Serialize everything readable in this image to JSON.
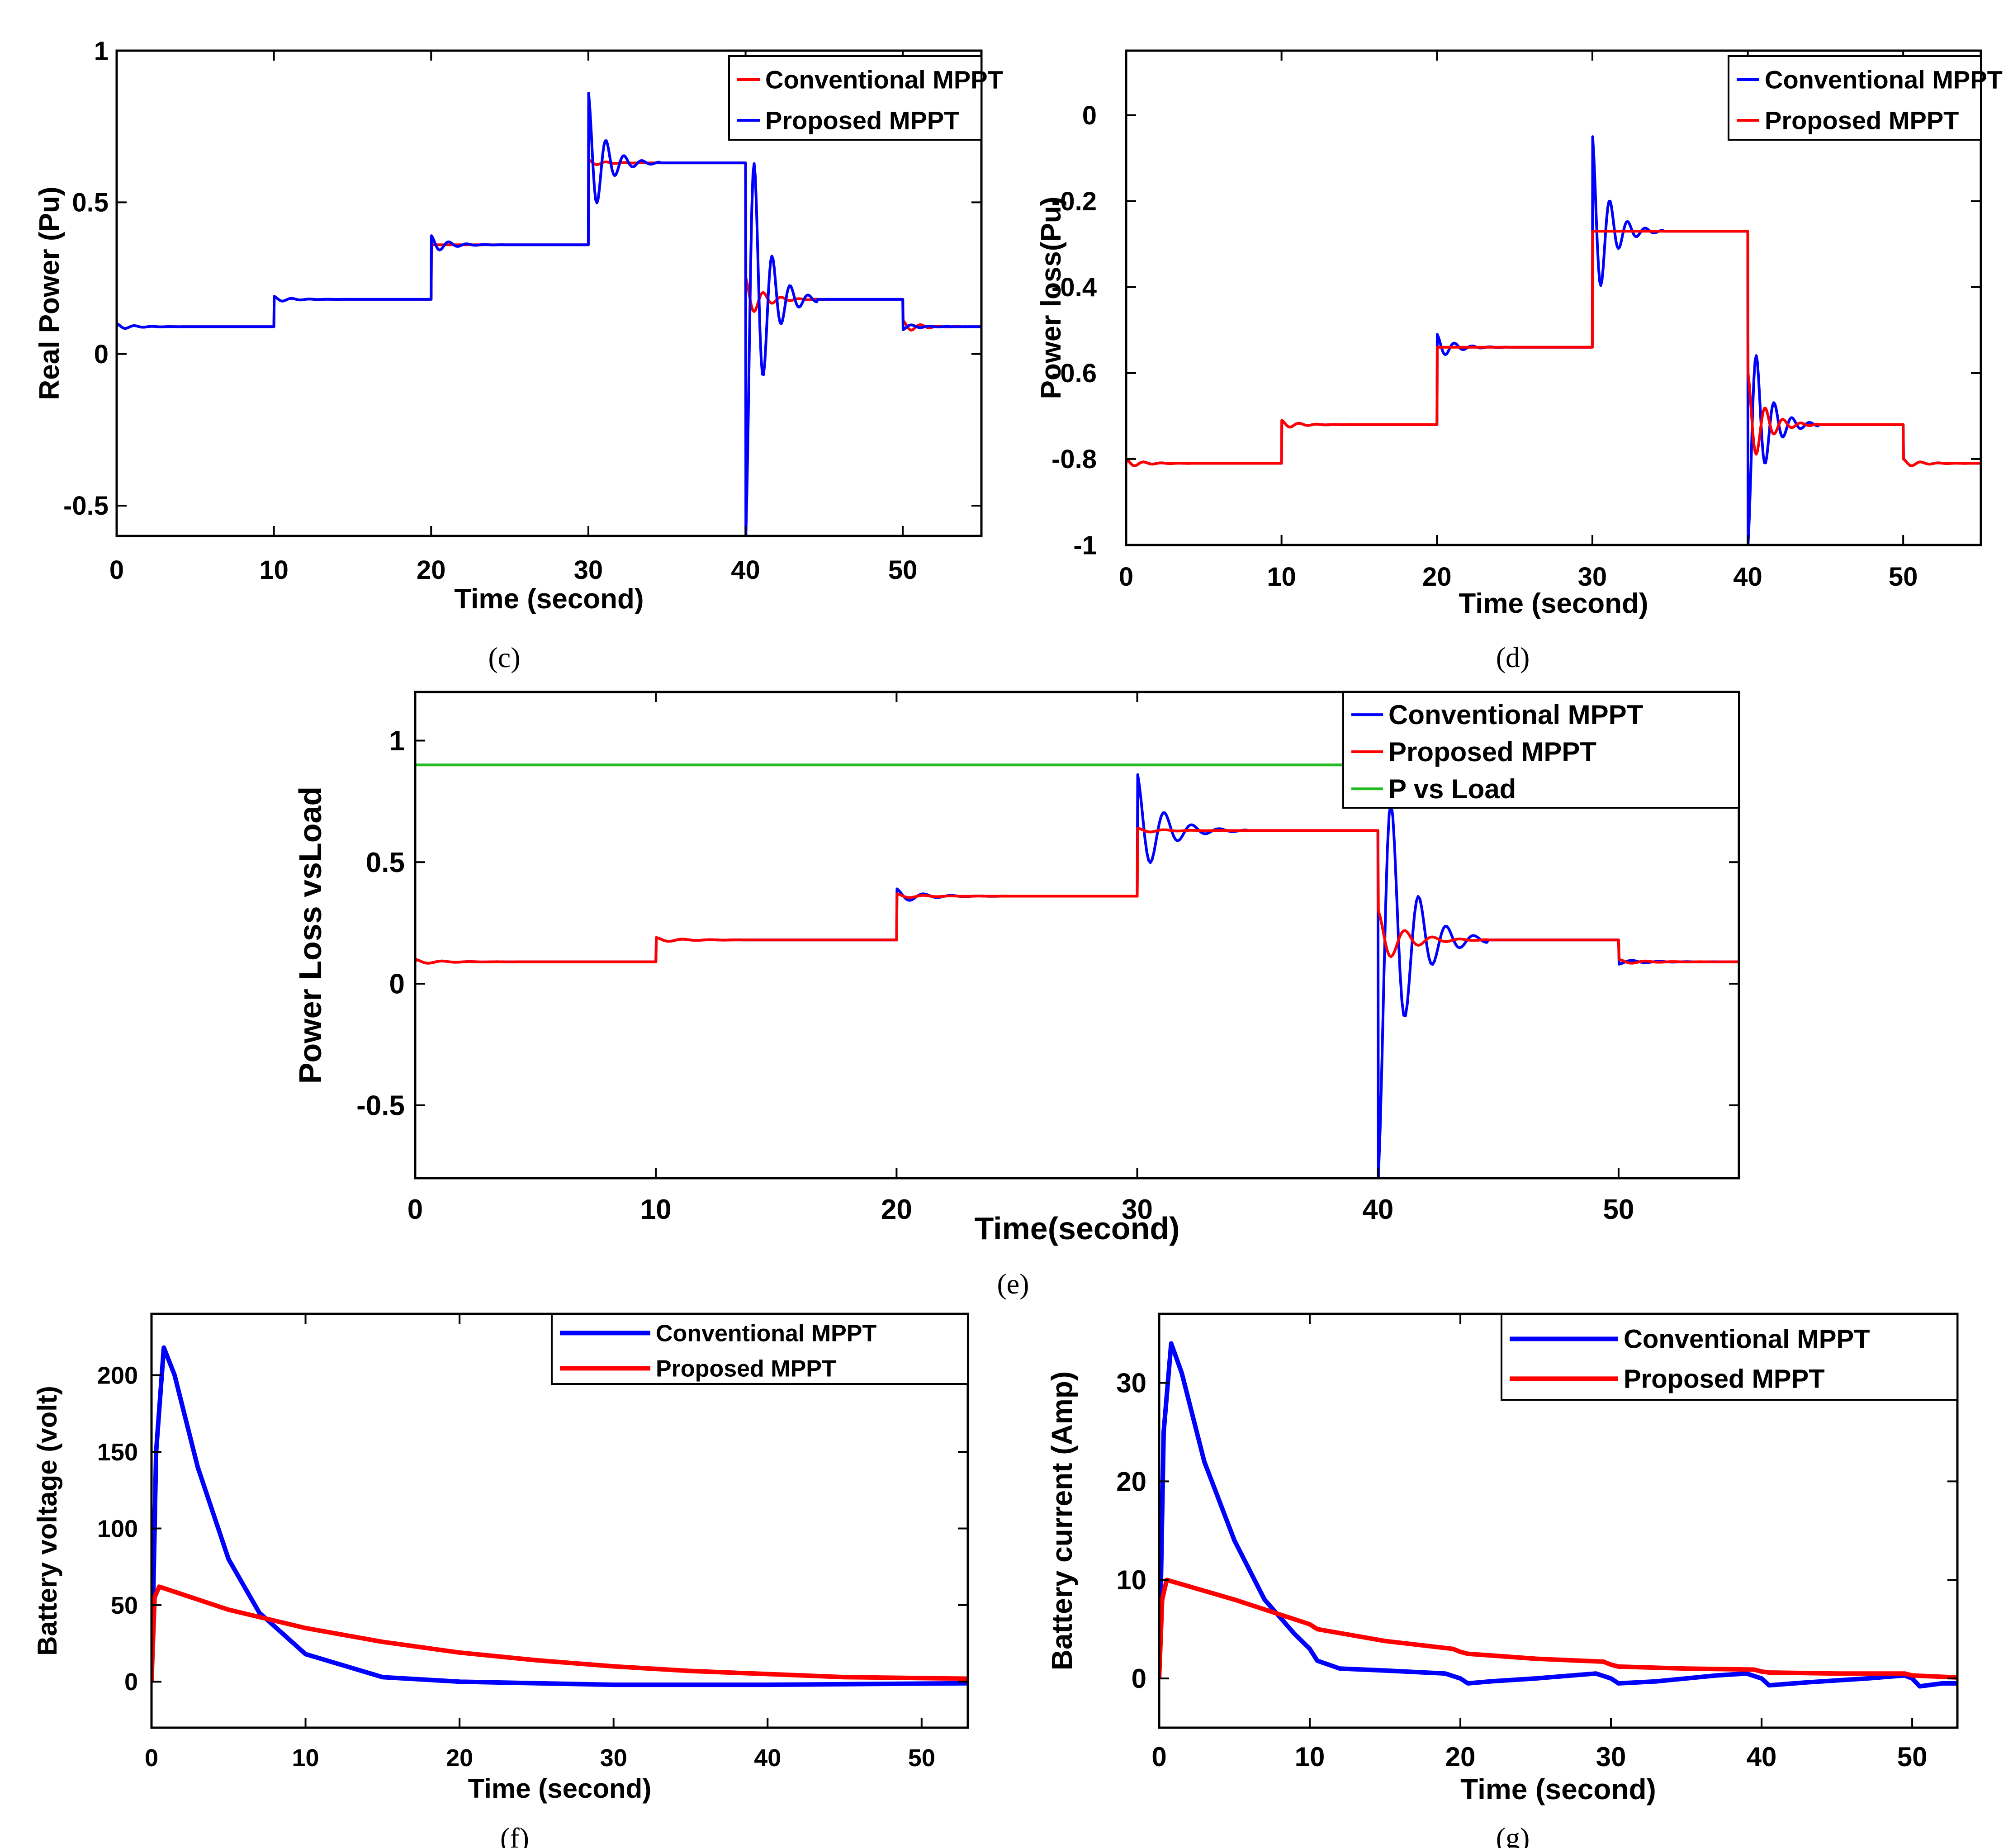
{
  "colors": {
    "blue": "#0000ff",
    "red": "#ff0000",
    "green": "#22bb22"
  },
  "chart_data": [
    {
      "id": "c",
      "caption": "(c)",
      "type": "line",
      "xlabel": "Time (second)",
      "ylabel": "Real Power (Pu)",
      "xlim": [
        0,
        55
      ],
      "ylim": [
        -0.6,
        1.0
      ],
      "xticks": [
        "0",
        "10",
        "20",
        "30",
        "40",
        "50"
      ],
      "yticks": [
        "-0.5",
        "0",
        "0.5",
        "1"
      ],
      "legend_position": "top-right",
      "series": [
        {
          "name": "Conventional MPPT",
          "color": "red",
          "levels": [
            [
              0,
              0.09
            ],
            [
              10,
              0.18
            ],
            [
              20,
              0.36
            ],
            [
              30,
              0.63
            ],
            [
              40,
              0.18
            ],
            [
              50,
              0.09
            ]
          ],
          "spikes": [
            0.1,
            0.19,
            0.36,
            0.64,
            0.25,
            0.11
          ],
          "end": 0.09
        },
        {
          "name": "Proposed MPPT",
          "color": "blue",
          "levels": [
            [
              0,
              0.09
            ],
            [
              10,
              0.18
            ],
            [
              20,
              0.36
            ],
            [
              30,
              0.63
            ],
            [
              40,
              0.18
            ],
            [
              50,
              0.09
            ]
          ],
          "spikes": [
            0.1,
            0.19,
            0.39,
            0.86,
            -0.6,
            0.08
          ],
          "end": 0.09
        }
      ]
    },
    {
      "id": "d",
      "caption": "(d)",
      "type": "line",
      "xlabel": "Time (second)",
      "ylabel": "Power loss(Pu)",
      "xlim": [
        0,
        55
      ],
      "ylim": [
        -1.0,
        0.15
      ],
      "xticks": [
        "0",
        "10",
        "20",
        "30",
        "40",
        "50"
      ],
      "yticks": [
        "-1",
        "-0.8",
        "-0.6",
        "-0.4",
        "-0.2",
        "0"
      ],
      "legend_position": "top-right",
      "series": [
        {
          "name": "Conventional MPPT",
          "color": "blue",
          "levels": [
            [
              0,
              -0.81
            ],
            [
              10,
              -0.72
            ],
            [
              20,
              -0.54
            ],
            [
              30,
              -0.27
            ],
            [
              40,
              -0.72
            ],
            [
              50,
              -0.81
            ]
          ],
          "spikes": [
            -0.8,
            -0.71,
            -0.51,
            -0.05,
            -1.0,
            -0.8
          ],
          "end": -0.81
        },
        {
          "name": "Proposed MPPT",
          "color": "red",
          "levels": [
            [
              0,
              -0.81
            ],
            [
              10,
              -0.72
            ],
            [
              20,
              -0.54
            ],
            [
              30,
              -0.27
            ],
            [
              40,
              -0.72
            ],
            [
              50,
              -0.81
            ]
          ],
          "spikes": [
            -0.8,
            -0.71,
            -0.54,
            -0.27,
            -0.6,
            -0.8
          ],
          "end": -0.81
        }
      ]
    },
    {
      "id": "e",
      "caption": "(e)",
      "type": "line",
      "xlabel": "Time(second)",
      "ylabel": "Power Loss vsLoad",
      "xlim": [
        0,
        55
      ],
      "ylim": [
        -0.8,
        1.2
      ],
      "xticks": [
        "0",
        "10",
        "20",
        "30",
        "40",
        "50"
      ],
      "yticks": [
        "-0.5",
        "0",
        "0.5",
        "1"
      ],
      "legend_position": "top-right",
      "series": [
        {
          "name": "Conventional MPPT",
          "color": "blue",
          "levels": [
            [
              0,
              0.09
            ],
            [
              10,
              0.18
            ],
            [
              20,
              0.36
            ],
            [
              30,
              0.63
            ],
            [
              40,
              0.18
            ],
            [
              50,
              0.09
            ]
          ],
          "spikes": [
            0.1,
            0.19,
            0.39,
            0.86,
            -0.8,
            0.08
          ],
          "end": 0.09
        },
        {
          "name": "Proposed MPPT",
          "color": "red",
          "levels": [
            [
              0,
              0.09
            ],
            [
              10,
              0.18
            ],
            [
              20,
              0.36
            ],
            [
              30,
              0.63
            ],
            [
              40,
              0.18
            ],
            [
              50,
              0.09
            ]
          ],
          "spikes": [
            0.1,
            0.19,
            0.37,
            0.64,
            0.3,
            0.1
          ],
          "end": 0.09
        },
        {
          "name": "P vs Load",
          "color": "green",
          "constant": 0.9,
          "x_end": 40
        }
      ]
    },
    {
      "id": "f",
      "caption": "(f)",
      "type": "line",
      "xlabel": "Time (second)",
      "ylabel": "Battery voltage (volt)",
      "xlim": [
        0,
        53
      ],
      "ylim": [
        -30,
        240
      ],
      "xticks": [
        "0",
        "10",
        "20",
        "30",
        "40",
        "50"
      ],
      "yticks": [
        "0",
        "50",
        "100",
        "150",
        "200"
      ],
      "legend_position": "top-right",
      "series": [
        {
          "name": "Conventional MPPT",
          "color": "blue",
          "points": [
            [
              0,
              0
            ],
            [
              0.3,
              150
            ],
            [
              0.8,
              218
            ],
            [
              1.5,
              200
            ],
            [
              3,
              140
            ],
            [
              5,
              80
            ],
            [
              7,
              45
            ],
            [
              10,
              18
            ],
            [
              15,
              3
            ],
            [
              20,
              0
            ],
            [
              30,
              -2
            ],
            [
              40,
              -2
            ],
            [
              53,
              -1
            ]
          ]
        },
        {
          "name": "Proposed MPPT",
          "color": "red",
          "points": [
            [
              0,
              0
            ],
            [
              0.2,
              55
            ],
            [
              0.5,
              62
            ],
            [
              5,
              47
            ],
            [
              10,
              35
            ],
            [
              15,
              26
            ],
            [
              20,
              19
            ],
            [
              25,
              14
            ],
            [
              30,
              10
            ],
            [
              35,
              7
            ],
            [
              40,
              5
            ],
            [
              45,
              3
            ],
            [
              53,
              2
            ]
          ]
        }
      ]
    },
    {
      "id": "g",
      "caption": "(g)",
      "type": "line",
      "xlabel": "Time (second)",
      "ylabel": "Battery current (Amp)",
      "xlim": [
        0,
        53
      ],
      "ylim": [
        -5,
        37
      ],
      "xticks": [
        "0",
        "10",
        "20",
        "30",
        "40",
        "50"
      ],
      "yticks": [
        "0",
        "10",
        "20",
        "30"
      ],
      "legend_position": "top-right",
      "series": [
        {
          "name": "Conventional MPPT",
          "color": "blue",
          "points": [
            [
              0,
              0
            ],
            [
              0.3,
              25
            ],
            [
              0.8,
              34
            ],
            [
              1.5,
              31
            ],
            [
              3,
              22
            ],
            [
              5,
              14
            ],
            [
              7,
              8
            ],
            [
              9,
              4.5
            ],
            [
              10,
              3
            ],
            [
              10.5,
              1.8
            ],
            [
              12,
              1
            ],
            [
              15,
              0.8
            ],
            [
              19,
              0.5
            ],
            [
              20,
              0
            ],
            [
              20.5,
              -0.5
            ],
            [
              22,
              -0.3
            ],
            [
              25,
              0
            ],
            [
              29,
              0.5
            ],
            [
              30,
              0
            ],
            [
              30.5,
              -0.5
            ],
            [
              33,
              -0.3
            ],
            [
              37,
              0.3
            ],
            [
              39,
              0.5
            ],
            [
              40,
              0
            ],
            [
              40.5,
              -0.7
            ],
            [
              43,
              -0.4
            ],
            [
              47,
              0
            ],
            [
              49.5,
              0.3
            ],
            [
              50,
              0
            ],
            [
              50.5,
              -0.8
            ],
            [
              52,
              -0.5
            ],
            [
              53,
              -0.5
            ]
          ]
        },
        {
          "name": "Proposed MPPT",
          "color": "red",
          "points": [
            [
              0,
              0
            ],
            [
              0.2,
              8
            ],
            [
              0.5,
              10
            ],
            [
              5,
              8
            ],
            [
              9,
              6
            ],
            [
              10,
              5.5
            ],
            [
              10.5,
              5
            ],
            [
              15,
              3.8
            ],
            [
              19.5,
              3
            ],
            [
              20,
              2.7
            ],
            [
              20.5,
              2.5
            ],
            [
              25,
              2
            ],
            [
              29.5,
              1.7
            ],
            [
              30,
              1.4
            ],
            [
              30.5,
              1.2
            ],
            [
              35,
              1
            ],
            [
              39.5,
              0.9
            ],
            [
              40,
              0.7
            ],
            [
              40.5,
              0.6
            ],
            [
              45,
              0.5
            ],
            [
              49.5,
              0.5
            ],
            [
              50,
              0.3
            ],
            [
              53,
              0.1
            ]
          ]
        }
      ]
    }
  ]
}
